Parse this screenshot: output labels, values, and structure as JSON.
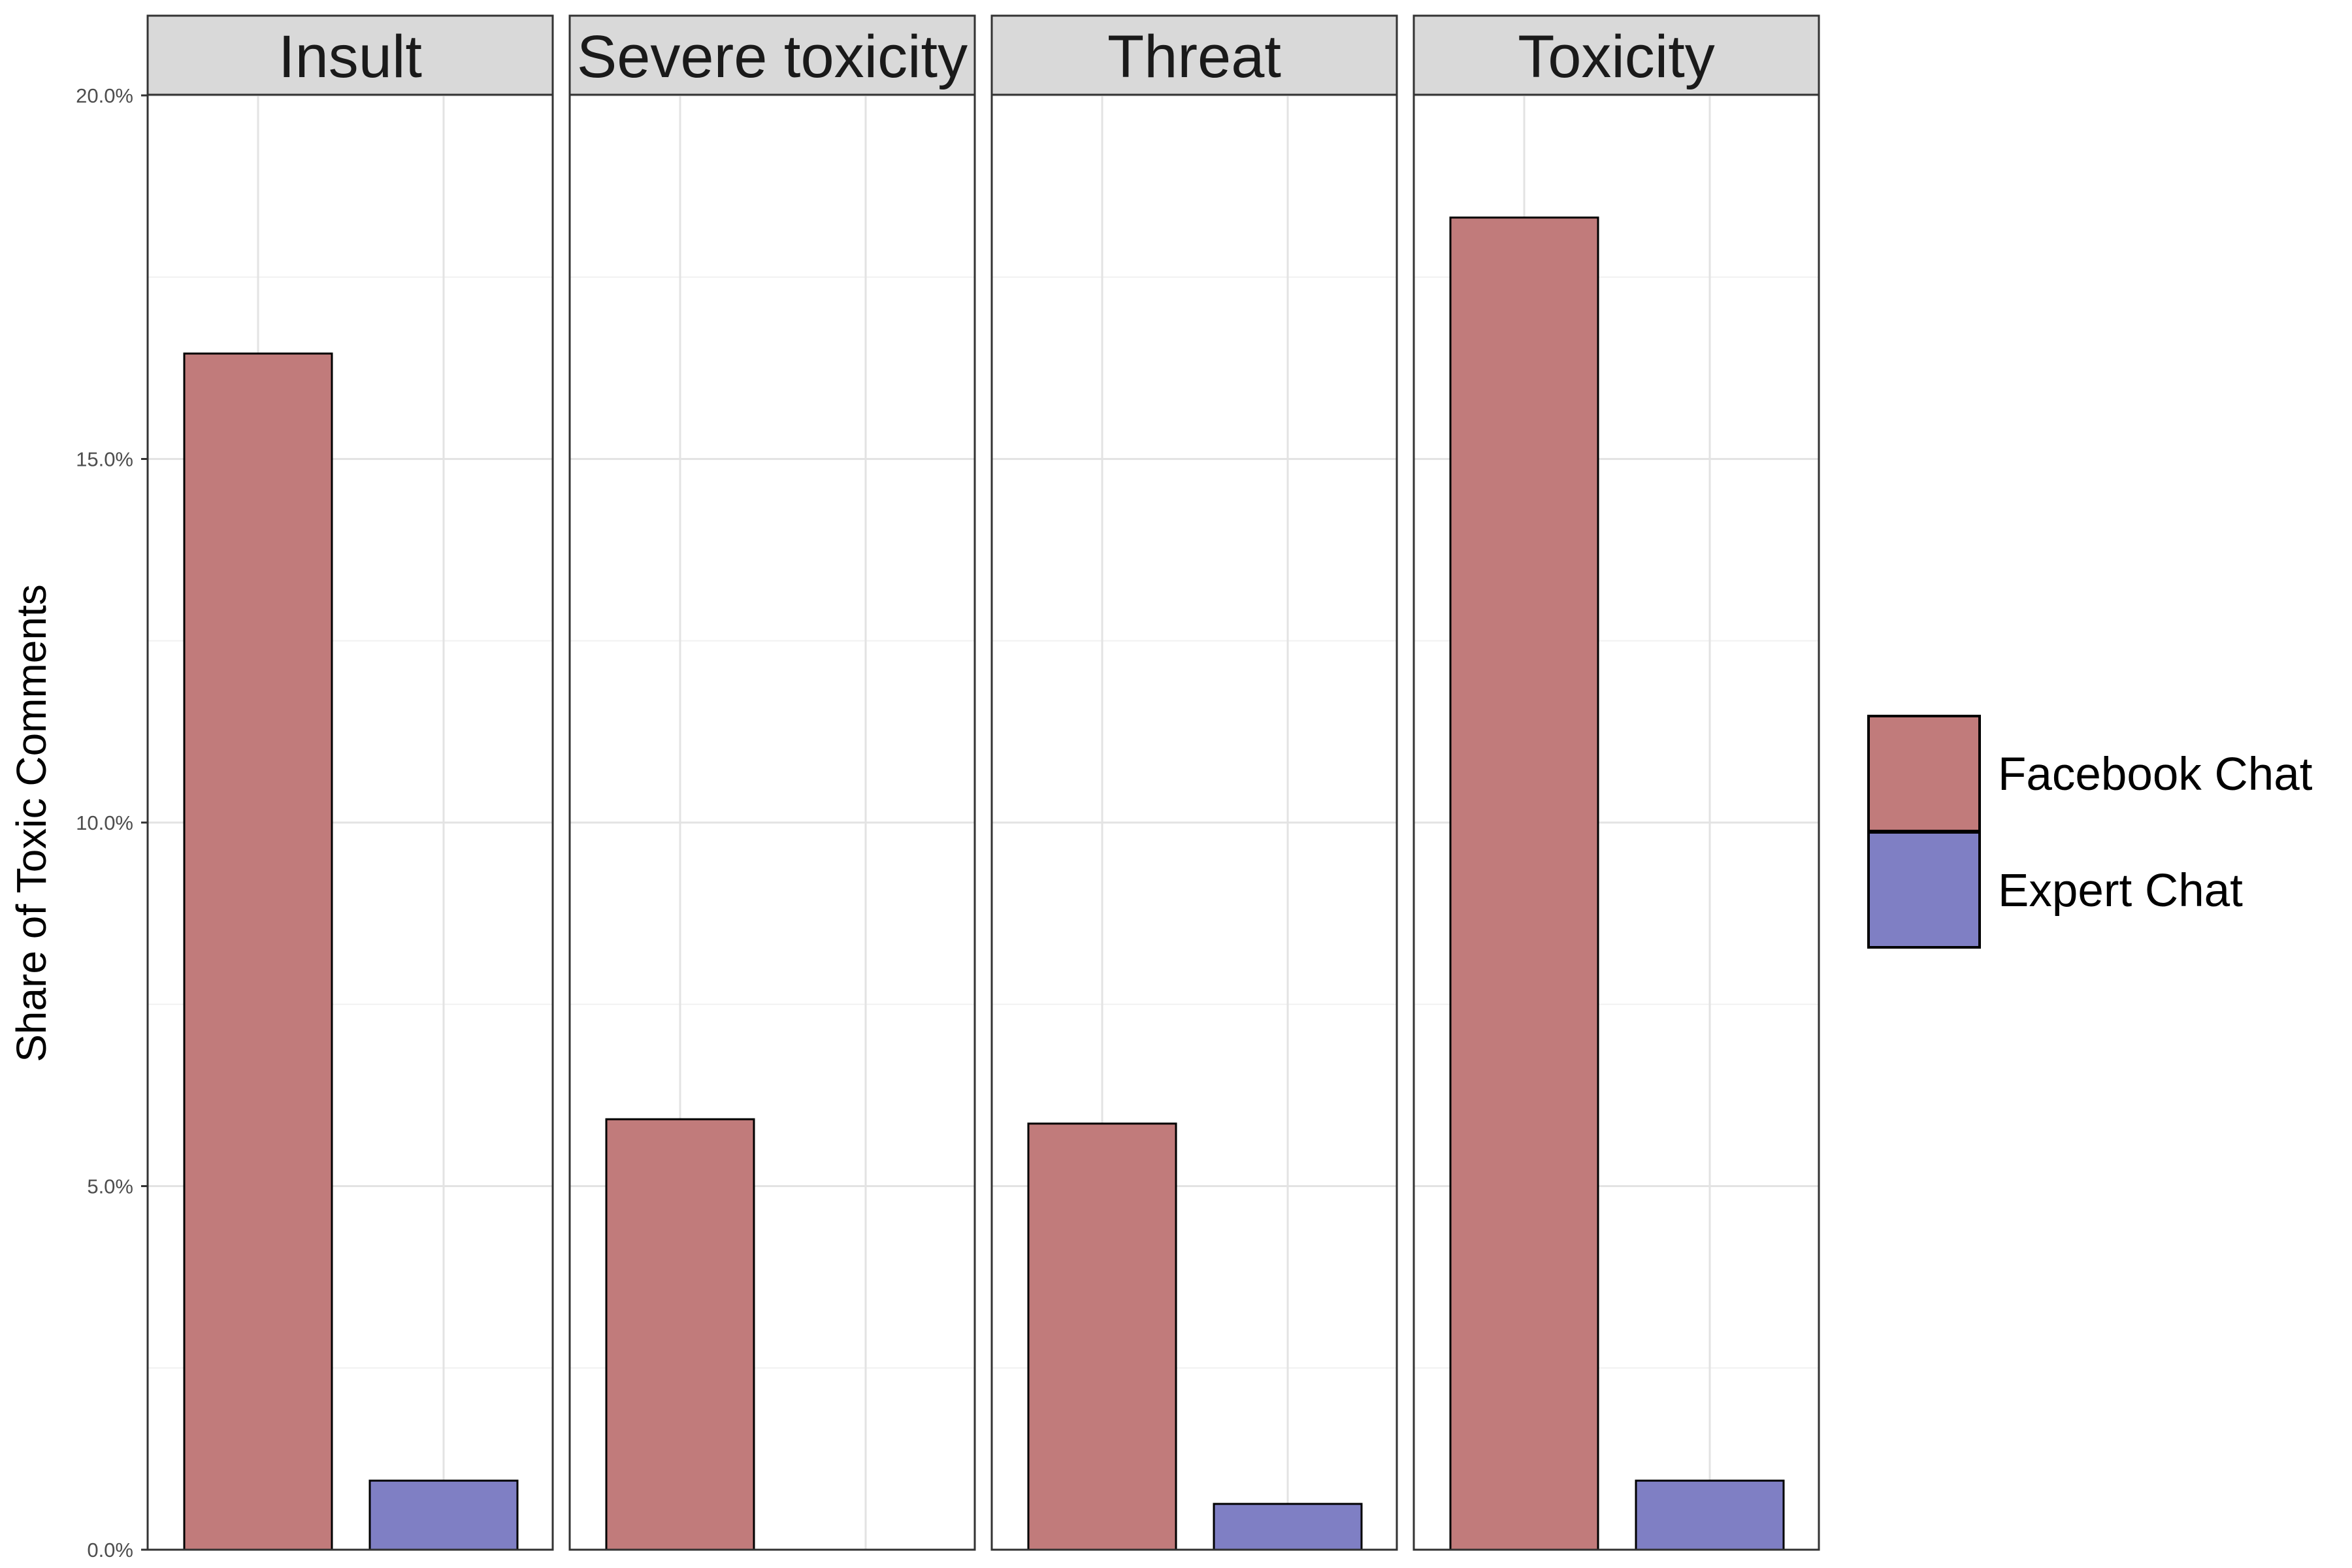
{
  "chart_data": {
    "type": "bar",
    "facets": [
      "Insult",
      "Severe toxicity",
      "Threat",
      "Toxicity"
    ],
    "series": [
      {
        "name": "Facebook Chat",
        "values": [
          16.45,
          5.92,
          5.86,
          18.32
        ],
        "color": "#c17b7b"
      },
      {
        "name": "Expert Chat",
        "values": [
          0.95,
          0.0,
          0.63,
          0.95
        ],
        "color": "#7f7fc4"
      }
    ],
    "xlabel": "",
    "ylabel": "Share of Toxic Comments",
    "ylim": [
      0,
      20
    ],
    "yticks": [
      0,
      5,
      10,
      15,
      20
    ],
    "ytick_labels": [
      "0.0%",
      "5.0%",
      "10.0%",
      "15.0%",
      "20.0%"
    ],
    "grid": true,
    "legend_position": "right"
  }
}
